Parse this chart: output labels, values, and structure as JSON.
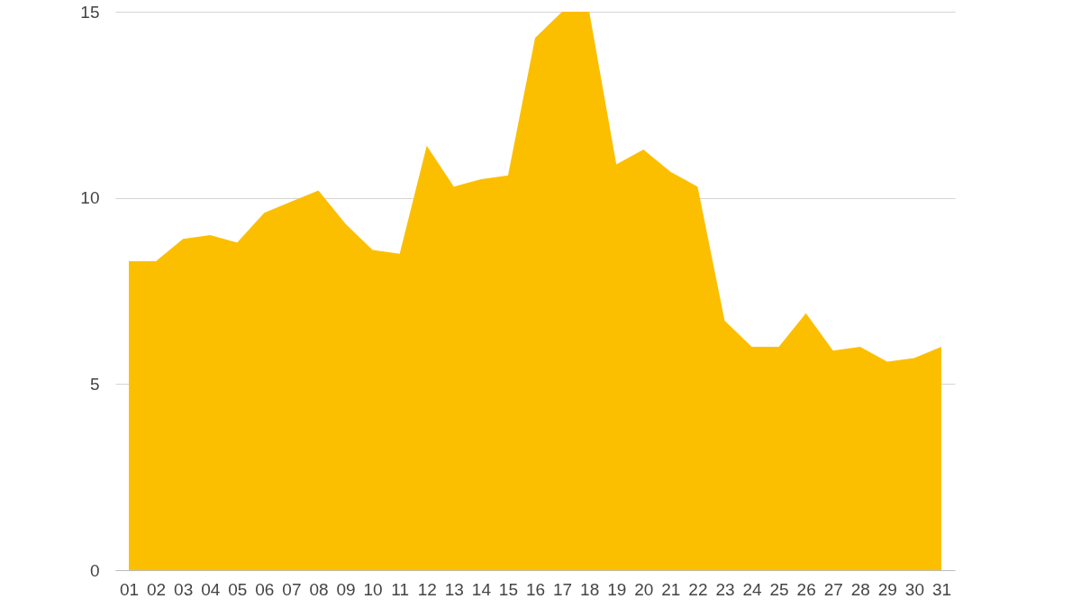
{
  "chart_data": {
    "type": "area",
    "categories": [
      "01",
      "02",
      "03",
      "04",
      "05",
      "06",
      "07",
      "08",
      "09",
      "10",
      "11",
      "12",
      "13",
      "14",
      "15",
      "16",
      "17",
      "18",
      "19",
      "20",
      "21",
      "22",
      "23",
      "24",
      "25",
      "26",
      "27",
      "28",
      "29",
      "30",
      "31"
    ],
    "values": [
      8.3,
      8.3,
      8.9,
      9.0,
      8.8,
      9.6,
      9.9,
      10.2,
      9.3,
      8.6,
      8.5,
      11.4,
      10.3,
      10.5,
      10.6,
      14.3,
      15.0,
      15.0,
      10.9,
      11.3,
      10.7,
      10.3,
      6.7,
      6.0,
      6.0,
      6.9,
      5.9,
      6.0,
      5.6,
      5.7,
      6.0
    ],
    "color": "#fcbf00",
    "ylim": [
      0,
      15
    ],
    "yticks": [
      0,
      5,
      10,
      15
    ],
    "grid": "y"
  }
}
